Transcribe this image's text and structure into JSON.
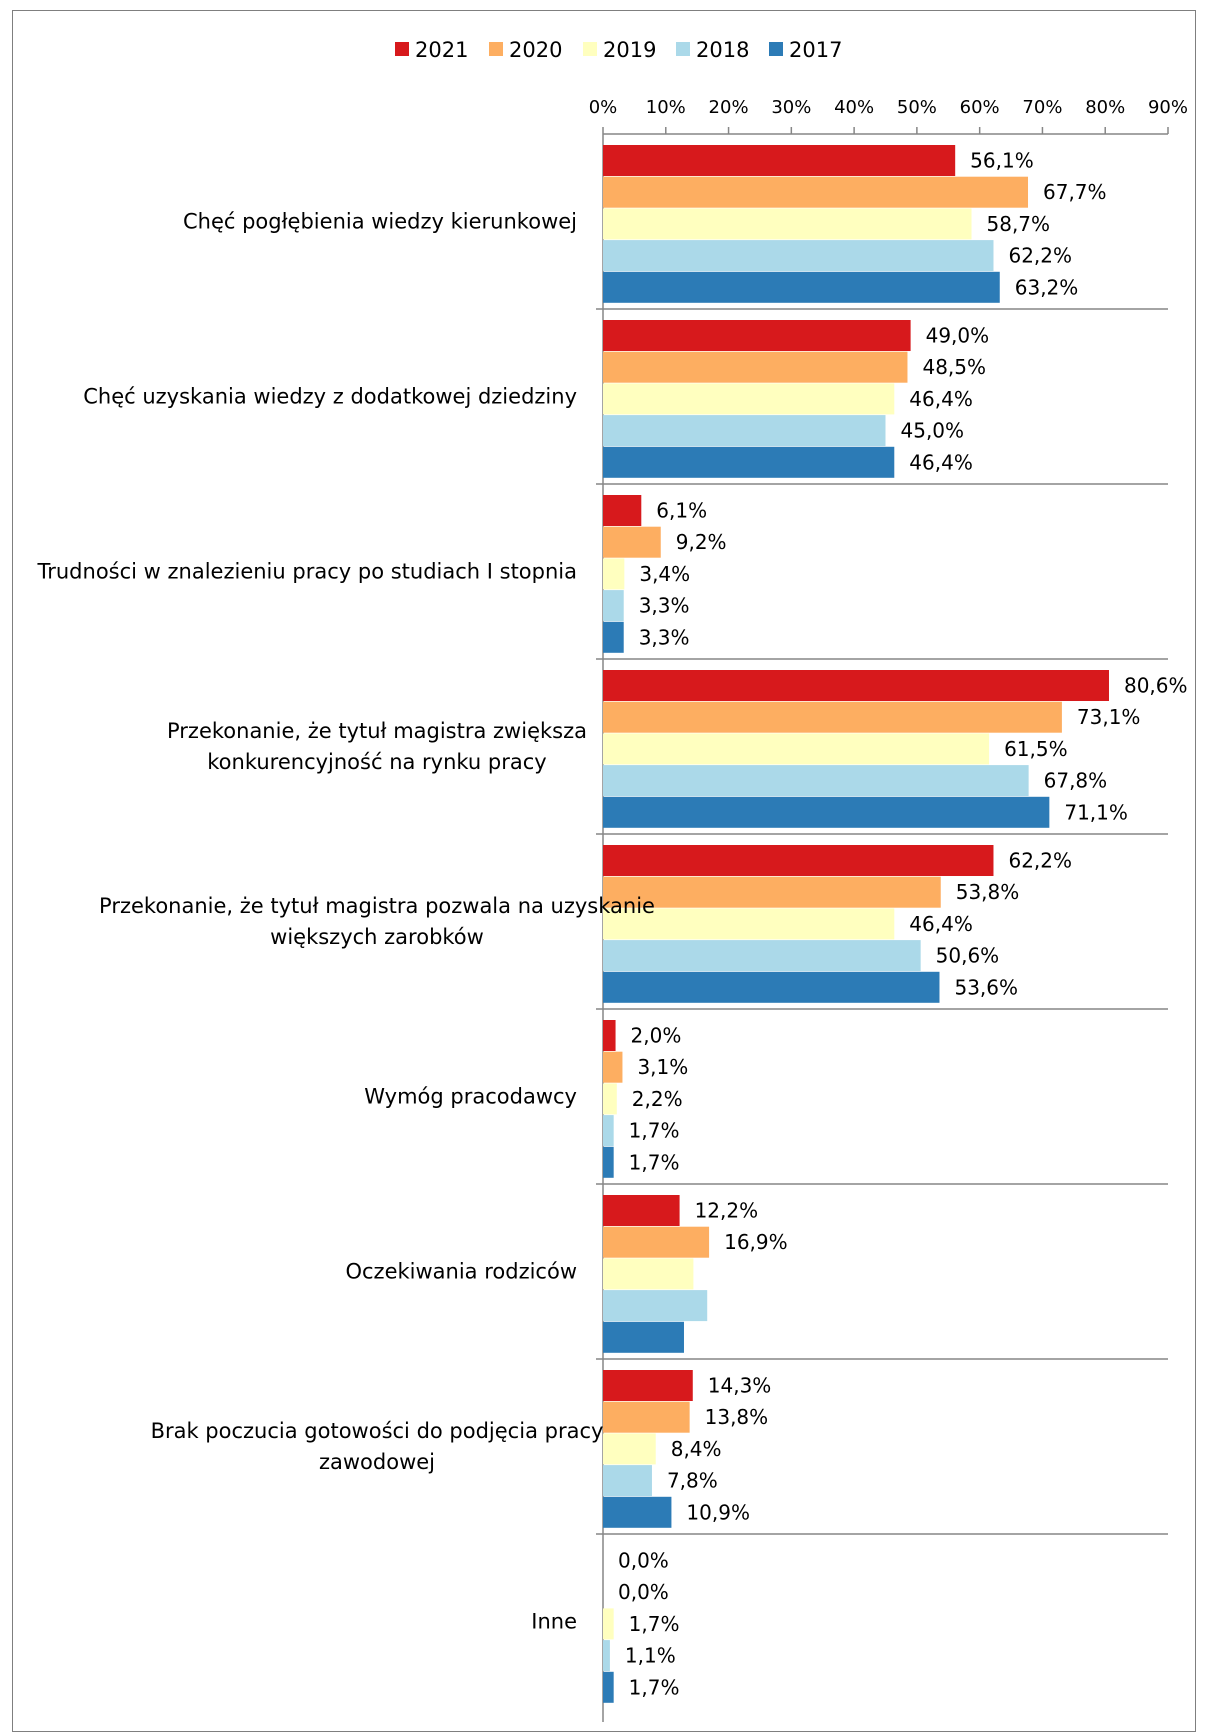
{
  "chart_data": {
    "type": "bar",
    "orientation": "horizontal",
    "title": "",
    "xlabel": "",
    "ylabel": "",
    "xlim": [
      0,
      90
    ],
    "x_ticks": [
      "0%",
      "10%",
      "20%",
      "30%",
      "40%",
      "50%",
      "60%",
      "70%",
      "80%",
      "90%"
    ],
    "x_axis_position": "top",
    "legend_position": "top",
    "grid": false,
    "categories": [
      [
        "Chęć pogłębienia wiedzy kierunkowej"
      ],
      [
        "Chęć uzyskania wiedzy z dodatkowej dziedziny"
      ],
      [
        "Trudności w znalezieniu pracy po studiach I stopnia"
      ],
      [
        "Przekonanie, że tytuł magistra zwiększa",
        "konkurencyjność na rynku pracy"
      ],
      [
        "Przekonanie, że tytuł magistra pozwala na uzyskanie",
        "większych zarobków"
      ],
      [
        "Wymóg pracodawcy"
      ],
      [
        "Oczekiwania rodziców"
      ],
      [
        "Brak poczucia gotowości do podjęcia pracy",
        "zawodowej"
      ],
      [
        "Inne"
      ]
    ],
    "series": [
      {
        "name": "2021",
        "color": "#d7191c",
        "values": [
          56.1,
          49.0,
          6.1,
          80.6,
          62.2,
          2.0,
          12.2,
          14.3,
          0.0
        ],
        "labels": [
          "56,1%",
          "49,0%",
          "6,1%",
          "80,6%",
          "62,2%",
          "2,0%",
          "12,2%",
          "14,3%",
          "0,0%"
        ]
      },
      {
        "name": "2020",
        "color": "#fdae61",
        "values": [
          67.7,
          48.5,
          9.2,
          73.1,
          53.8,
          3.1,
          16.9,
          13.8,
          0.0
        ],
        "labels": [
          "67,7%",
          "48,5%",
          "9,2%",
          "73,1%",
          "53,8%",
          "3,1%",
          "16,9%",
          "13,8%",
          "0,0%"
        ]
      },
      {
        "name": "2019",
        "color": "#ffffbf",
        "values": [
          58.7,
          46.4,
          3.4,
          61.5,
          46.4,
          2.2,
          14.4,
          8.4,
          1.7
        ],
        "labels": [
          "58,7%",
          "46,4%",
          "3,4%",
          "61,5%",
          "46,4%",
          "2,2%",
          "",
          "8,4%",
          "1,7%"
        ]
      },
      {
        "name": "2018",
        "color": "#abd9e9",
        "values": [
          62.2,
          45.0,
          3.3,
          67.8,
          50.6,
          1.7,
          16.6,
          7.8,
          1.1
        ],
        "labels": [
          "62,2%",
          "45,0%",
          "3,3%",
          "67,8%",
          "50,6%",
          "1,7%",
          "",
          "7,8%",
          "1,1%"
        ]
      },
      {
        "name": "2017",
        "color": "#2c7bb6",
        "values": [
          63.2,
          46.4,
          3.3,
          71.1,
          53.6,
          1.7,
          12.9,
          10.9,
          1.7
        ],
        "labels": [
          "63,2%",
          "46,4%",
          "3,3%",
          "71,1%",
          "53,6%",
          "1,7%",
          "",
          "10,9%",
          "1,7%"
        ]
      }
    ]
  }
}
